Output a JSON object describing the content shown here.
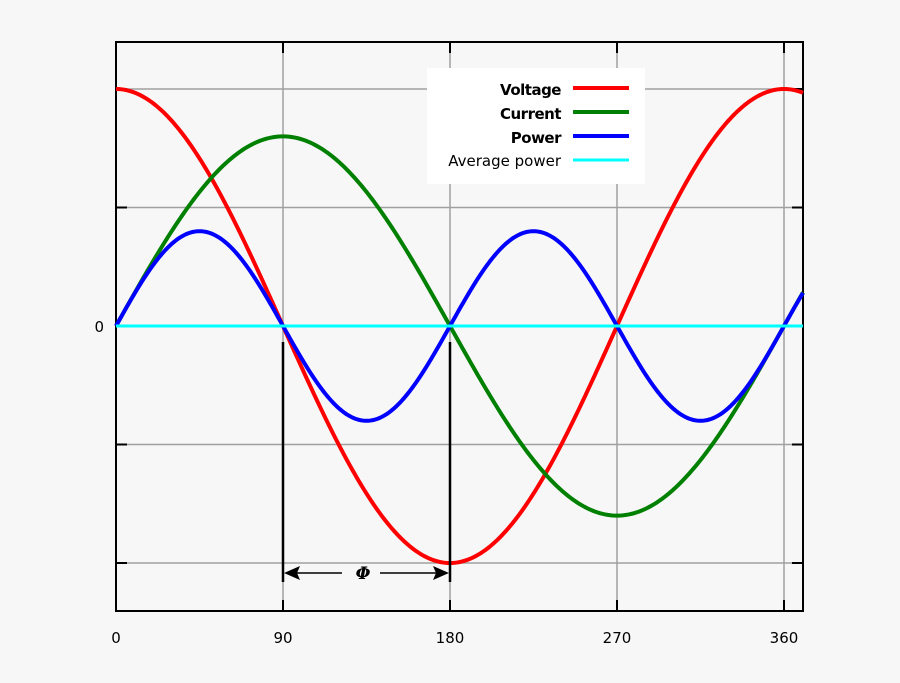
{
  "chart_data": {
    "type": "line",
    "title": "",
    "xlabel": "",
    "ylabel": "",
    "x_ticks": [
      0,
      90,
      180,
      270,
      360
    ],
    "x_tick_labels": [
      "0",
      "90",
      "180",
      "270",
      "360"
    ],
    "y_tick_labels": [
      "0"
    ],
    "xlim": [
      0,
      370
    ],
    "ylim": [
      -1.2,
      1.2
    ],
    "grid": true,
    "legend_position": "top-right",
    "series": [
      {
        "name": "Voltage",
        "color": "#ff0000",
        "formula": "cos(x)",
        "amplitude": 1.0,
        "phase_deg": 0,
        "x": [
          0,
          45,
          90,
          135,
          180,
          225,
          270,
          315,
          360
        ],
        "values": [
          1.0,
          0.71,
          0.0,
          -0.71,
          -1.0,
          -0.71,
          0.0,
          0.71,
          1.0
        ]
      },
      {
        "name": "Current",
        "color": "#008000",
        "formula": "0.8*sin(x)",
        "amplitude": 0.8,
        "phase_deg": 90,
        "x": [
          0,
          45,
          90,
          135,
          180,
          225,
          270,
          315,
          360
        ],
        "values": [
          0.0,
          0.57,
          0.8,
          0.57,
          0.0,
          -0.57,
          -0.8,
          -0.57,
          0.0
        ]
      },
      {
        "name": "Power",
        "color": "#0000ff",
        "formula": "0.4*sin(2x)",
        "amplitude": 0.4,
        "x": [
          0,
          45,
          90,
          135,
          180,
          225,
          270,
          315,
          360
        ],
        "values": [
          0.0,
          0.4,
          0.0,
          -0.4,
          0.0,
          0.4,
          0.0,
          -0.4,
          0.0
        ]
      },
      {
        "name": "Average power",
        "color": "#00ffff",
        "formula": "0",
        "x": [
          0,
          360
        ],
        "values": [
          0.0,
          0.0
        ]
      }
    ],
    "annotations": [
      {
        "text": "Φ",
        "type": "double-arrow",
        "from_x": 90,
        "to_x": 180,
        "description": "phase difference"
      }
    ]
  },
  "legend": {
    "items": [
      {
        "label": "Voltage",
        "color": "#ff0000"
      },
      {
        "label": "Current",
        "color": "#008000"
      },
      {
        "label": "Power",
        "color": "#0000ff"
      },
      {
        "label": "Average power",
        "color": "#00ffff"
      }
    ]
  },
  "axis": {
    "x_labels": [
      "0",
      "90",
      "180",
      "270",
      "360"
    ],
    "y_zero_label": "0"
  },
  "annotation": {
    "phi_label": "Φ"
  }
}
